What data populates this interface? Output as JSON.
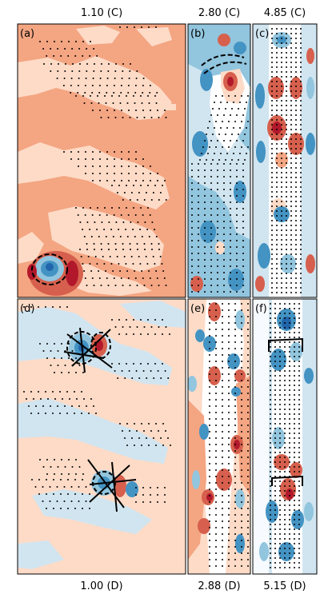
{
  "top_titles": [
    "1.10 (C)",
    "2.80 (C)",
    "4.85 (C)"
  ],
  "bottom_titles": [
    "1.00 (D)",
    "2.88 (D)",
    "5.15 (D)"
  ],
  "panels": [
    {
      "label": "(a)",
      "theme": "warm"
    },
    {
      "label": "(b)",
      "theme": "cool"
    },
    {
      "label": "(c)",
      "theme": "mixed"
    },
    {
      "label": "(d)",
      "theme": "pale"
    },
    {
      "label": "(e)",
      "theme": "warmcool"
    },
    {
      "label": "(f)",
      "theme": "cool"
    }
  ],
  "colors": {
    "red_dark": "#b2182b",
    "red": "#d6604d",
    "salmon": "#f4a582",
    "peach": "#fddbc7",
    "blue_pale": "#d1e5f0",
    "blue_light": "#92c5de",
    "blue": "#4393c3",
    "blue_dark": "#2166ac"
  }
}
